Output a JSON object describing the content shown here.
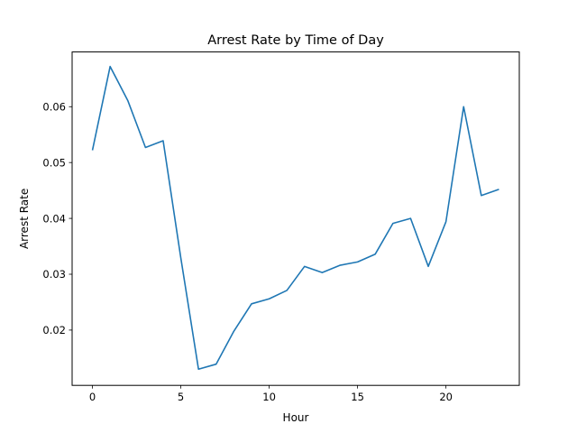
{
  "chart_data": {
    "type": "line",
    "title": "Arrest Rate by Time of Day",
    "xlabel": "Hour",
    "ylabel": "Arrest Rate",
    "xlim": [
      -1.15,
      24.15
    ],
    "ylim": [
      0.0101,
      0.0698
    ],
    "xticks": [
      0,
      5,
      10,
      15,
      20
    ],
    "xtick_labels": [
      "0",
      "5",
      "10",
      "15",
      "20"
    ],
    "yticks": [
      0.02,
      0.03,
      0.04,
      0.05,
      0.06
    ],
    "ytick_labels": [
      "0.02",
      "0.03",
      "0.04",
      "0.05",
      "0.06"
    ],
    "grid": false,
    "series": [
      {
        "color": "#1f77b4",
        "x": [
          0,
          1,
          2,
          3,
          4,
          5,
          6,
          7,
          8,
          9,
          10,
          11,
          12,
          13,
          14,
          15,
          16,
          17,
          18,
          19,
          20,
          21,
          22,
          23
        ],
        "values": [
          0.0522,
          0.0672,
          0.0611,
          0.0527,
          0.0539,
          0.0329,
          0.013,
          0.0139,
          0.0198,
          0.0247,
          0.0256,
          0.0271,
          0.0314,
          0.0303,
          0.0316,
          0.0322,
          0.0336,
          0.0391,
          0.04,
          0.0314,
          0.0394,
          0.06,
          0.0441,
          0.0452
        ]
      }
    ]
  }
}
